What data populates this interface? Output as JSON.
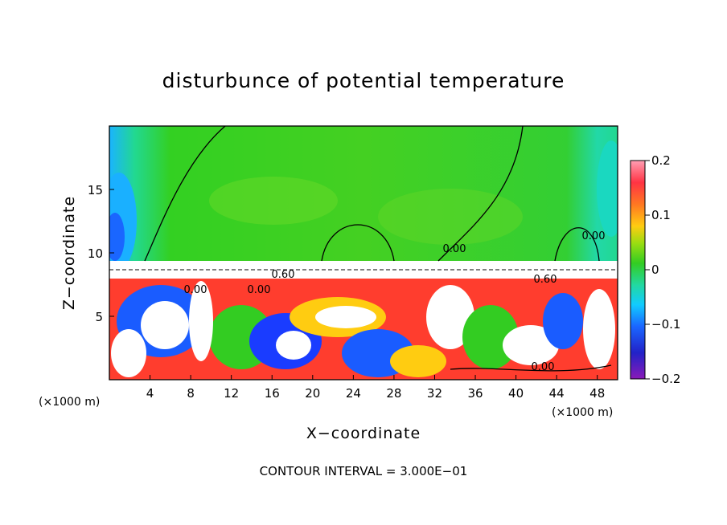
{
  "chart_data": {
    "type": "heatmap",
    "title": "disturbunce of potential temperature",
    "xlabel": "X−coordinate",
    "ylabel": "Z−coordinate",
    "x_unit": "(×1000 m)",
    "y_unit": "(×1000 m)",
    "xlim": [
      0,
      50
    ],
    "ylim": [
      0,
      20
    ],
    "x_ticks": [
      "4",
      "8",
      "12",
      "16",
      "20",
      "24",
      "28",
      "32",
      "36",
      "40",
      "44",
      "48"
    ],
    "y_ticks": [
      "5",
      "10",
      "15"
    ],
    "colorbar": {
      "range": [
        -0.2,
        0.2
      ],
      "tick_labels": [
        "0.2",
        "0.1",
        "0",
        "−0.1",
        "−0.2"
      ],
      "colors": [
        "#ff9fb4",
        "#ff3333",
        "#ff8c1a",
        "#ffee22",
        "#7cdc1c",
        "#22cc22",
        "#22d08a",
        "#1ad8ff",
        "#1e6cff",
        "#1e1ec8",
        "#7a1ab4"
      ]
    },
    "contour_labels": [
      "0.60",
      "0.60",
      "0.00",
      "0.00",
      "0.00",
      "0.00",
      "0.00"
    ],
    "footer": "CONTOUR INTERVAL = 3.000E−01"
  }
}
